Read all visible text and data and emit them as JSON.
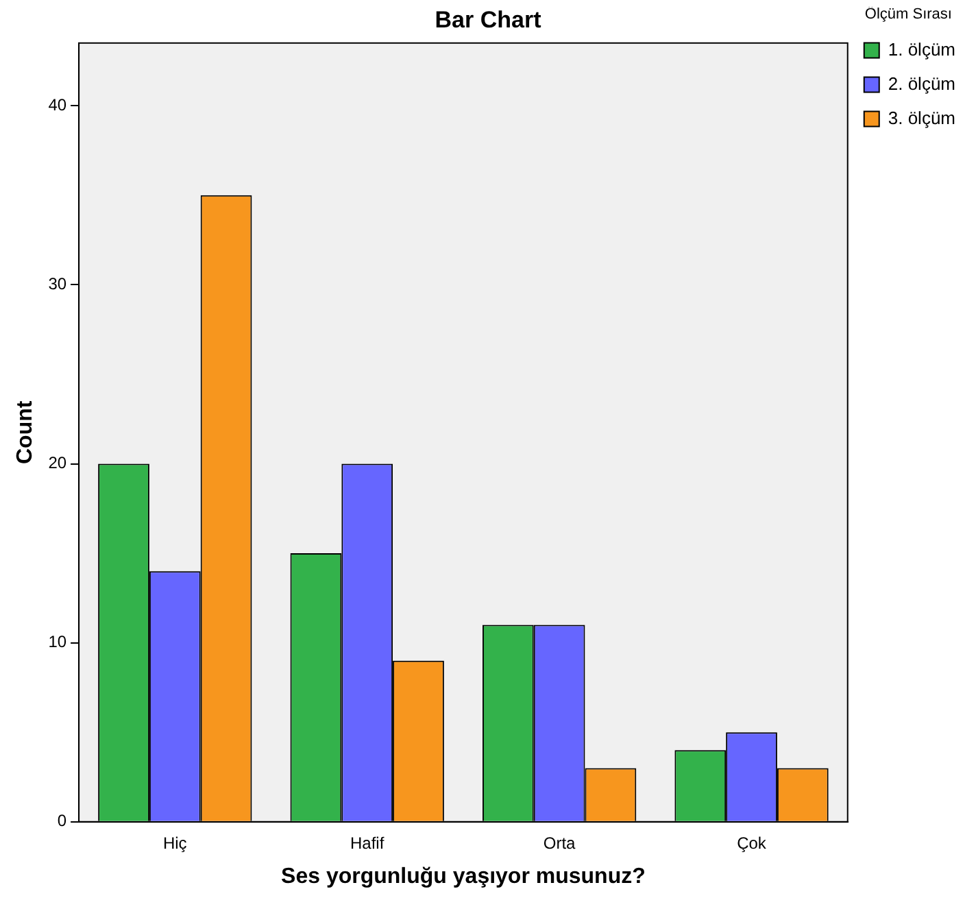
{
  "chart_data": {
    "type": "bar",
    "title": "Bar Chart",
    "xlabel": "Ses yorgunluğu yaşıyor musunuz?",
    "ylabel": "Count",
    "legend_title": "Ölçüm Sırası",
    "categories": [
      "Hiç",
      "Hafif",
      "Orta",
      "Çok"
    ],
    "series": [
      {
        "name": "1. ölçüm",
        "color": "#33b24b",
        "values": [
          20,
          15,
          11,
          4
        ]
      },
      {
        "name": "2. ölçüm",
        "color": "#6666ff",
        "values": [
          14,
          20,
          11,
          5
        ]
      },
      {
        "name": "3. ölçüm",
        "color": "#f7961e",
        "values": [
          35,
          9,
          3,
          3
        ]
      }
    ],
    "ylim": [
      0,
      43.5
    ],
    "yticks": [
      0,
      10,
      20,
      30,
      40
    ],
    "grid": false,
    "legend": "top right"
  }
}
